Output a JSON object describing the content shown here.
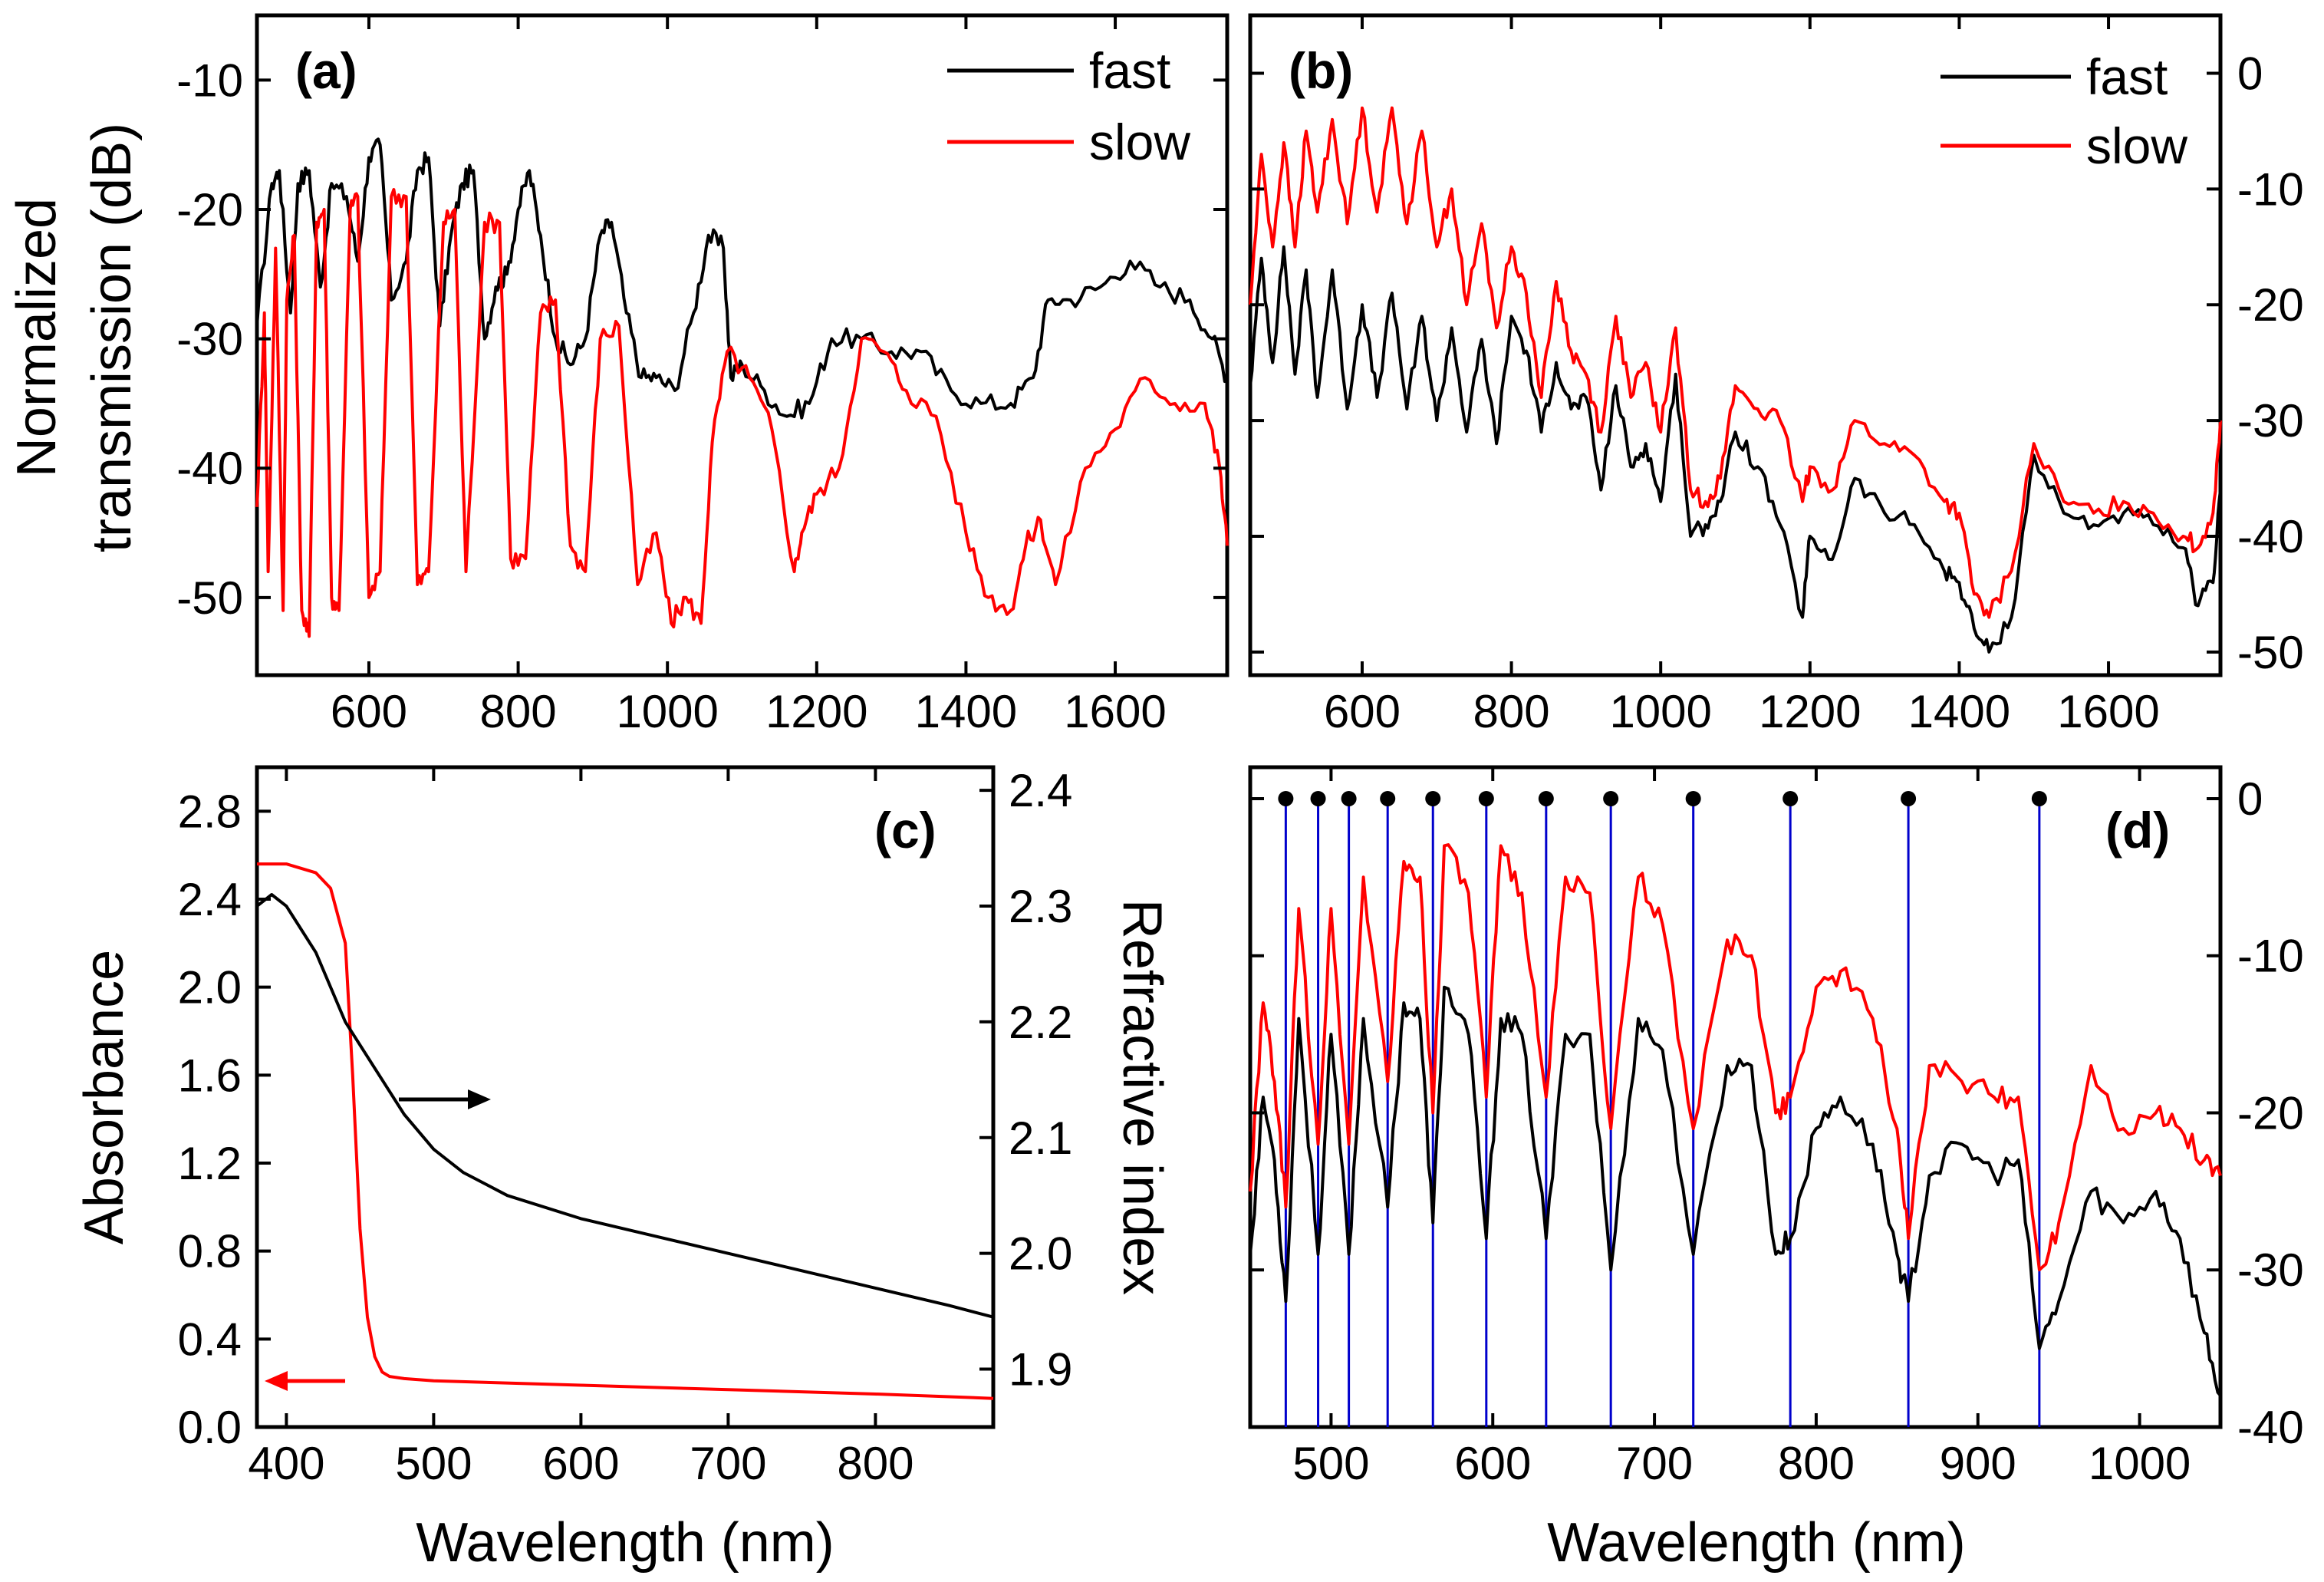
{
  "figure": {
    "y_title_left_top": [
      "Normalized",
      "transmission (dB)"
    ],
    "colors": {
      "fast": "#000000",
      "slow": "#ff0000",
      "mode_line": "#0000cc",
      "frame": "#000000"
    }
  },
  "chart_data": [
    {
      "id": "a",
      "type": "line",
      "panel_label": "(a)",
      "x_range": [
        450,
        1750
      ],
      "y_range": [
        -56,
        -5
      ],
      "y_axis_side": "left",
      "x_ticks": [
        "600",
        "800",
        "1000",
        "1200",
        "1400",
        "1600"
      ],
      "y_ticks": [
        "-10",
        "-20",
        "-30",
        "-40",
        "-50"
      ],
      "y_tick_values": [
        -10,
        -20,
        -30,
        -40,
        -50
      ],
      "legend": [
        "fast",
        "slow"
      ],
      "series": [
        {
          "name": "fast",
          "x": [
            450,
            470,
            480,
            495,
            505,
            520,
            535,
            550,
            570,
            585,
            600,
            615,
            630,
            650,
            665,
            680,
            695,
            710,
            725,
            740,
            755,
            770,
            785,
            800,
            815,
            830,
            850,
            870,
            890,
            910,
            925,
            945,
            965,
            985,
            1010,
            1035,
            1055,
            1075,
            1085,
            1100,
            1130,
            1160,
            1190,
            1220,
            1260,
            1300,
            1340,
            1380,
            1420,
            1460,
            1490,
            1510,
            1540,
            1580,
            1620,
            1660,
            1700,
            1730,
            1750
          ],
          "y": [
            -29,
            -18,
            -17,
            -28,
            -18,
            -17,
            -26,
            -18,
            -19,
            -24,
            -16,
            -15,
            -27,
            -24,
            -17,
            -16,
            -29,
            -22,
            -18,
            -17,
            -30,
            -26,
            -25,
            -20,
            -17,
            -22,
            -30,
            -32,
            -30,
            -22,
            -21,
            -28,
            -33,
            -33,
            -34,
            -28,
            -22,
            -23,
            -33,
            -32,
            -34,
            -36,
            -35,
            -30,
            -30,
            -31,
            -31,
            -34,
            -35,
            -35,
            -33,
            -27,
            -27,
            -26,
            -24,
            -26,
            -27,
            -30,
            -33
          ]
        },
        {
          "name": "slow",
          "x": [
            450,
            460,
            465,
            475,
            485,
            490,
            500,
            510,
            520,
            530,
            540,
            550,
            560,
            575,
            585,
            600,
            615,
            630,
            650,
            665,
            680,
            700,
            715,
            730,
            755,
            775,
            790,
            810,
            830,
            850,
            870,
            890,
            910,
            935,
            960,
            985,
            1005,
            1025,
            1045,
            1060,
            1080,
            1110,
            1140,
            1170,
            1180,
            1200,
            1230,
            1260,
            1290,
            1320,
            1360,
            1400,
            1430,
            1460,
            1480,
            1500,
            1520,
            1560,
            1600,
            1640,
            1680,
            1720,
            1740,
            1750
          ],
          "y": [
            -43,
            -28,
            -48,
            -23,
            -51,
            -27,
            -22,
            -51,
            -53,
            -21,
            -20,
            -50,
            -51,
            -20,
            -19,
            -50,
            -48,
            -19,
            -19,
            -49,
            -48,
            -21,
            -20,
            -48,
            -21,
            -21,
            -47,
            -47,
            -28,
            -27,
            -46,
            -48,
            -30,
            -29,
            -49,
            -45,
            -52,
            -50,
            -52,
            -38,
            -31,
            -33,
            -37,
            -48,
            -45,
            -42,
            -40,
            -30,
            -31,
            -34,
            -36,
            -45,
            -50,
            -51,
            -46,
            -44,
            -49,
            -40,
            -37,
            -33,
            -35,
            -35,
            -40,
            -46
          ]
        }
      ]
    },
    {
      "id": "b",
      "type": "line",
      "panel_label": "(b)",
      "x_range": [
        450,
        1750
      ],
      "y_range": [
        -52,
        5
      ],
      "y_axis_side": "right",
      "x_ticks": [
        "600",
        "800",
        "1000",
        "1200",
        "1400",
        "1600"
      ],
      "y_ticks": [
        "0",
        "-10",
        "-20",
        "-30",
        "-40",
        "-50"
      ],
      "y_tick_values": [
        0,
        -10,
        -20,
        -30,
        -40,
        -50
      ],
      "legend": [
        "fast",
        "slow"
      ],
      "series": [
        {
          "name": "fast",
          "x": [
            450,
            465,
            480,
            495,
            510,
            525,
            540,
            560,
            580,
            600,
            620,
            640,
            660,
            680,
            700,
            720,
            740,
            760,
            780,
            800,
            820,
            840,
            860,
            880,
            900,
            920,
            940,
            960,
            980,
            1000,
            1020,
            1040,
            1060,
            1080,
            1100,
            1130,
            1160,
            1190,
            1200,
            1230,
            1260,
            1300,
            1340,
            1380,
            1400,
            1420,
            1440,
            1470,
            1500,
            1540,
            1580,
            1620,
            1660,
            1700,
            1720,
            1740,
            1750
          ],
          "y": [
            -27,
            -16,
            -25,
            -15,
            -26,
            -17,
            -28,
            -17,
            -29,
            -20,
            -28,
            -19,
            -29,
            -21,
            -30,
            -22,
            -31,
            -23,
            -32,
            -21,
            -24,
            -31,
            -25,
            -29,
            -28,
            -36,
            -27,
            -34,
            -32,
            -37,
            -26,
            -40,
            -39,
            -37,
            -31,
            -34,
            -39,
            -47,
            -40,
            -42,
            -35,
            -38,
            -39,
            -43,
            -44,
            -48,
            -50,
            -47,
            -33,
            -38,
            -39,
            -38,
            -39,
            -41,
            -46,
            -44,
            -36
          ]
        },
        {
          "name": "slow",
          "x": [
            450,
            465,
            480,
            495,
            510,
            525,
            540,
            560,
            580,
            600,
            620,
            640,
            660,
            680,
            700,
            720,
            740,
            760,
            780,
            800,
            820,
            840,
            860,
            880,
            900,
            920,
            940,
            960,
            980,
            1000,
            1020,
            1040,
            1060,
            1080,
            1100,
            1130,
            1160,
            1190,
            1200,
            1230,
            1260,
            1300,
            1340,
            1380,
            1400,
            1420,
            1440,
            1470,
            1500,
            1540,
            1580,
            1620,
            1660,
            1700,
            1720,
            1740,
            1750
          ],
          "y": [
            -20,
            -7,
            -15,
            -6,
            -15,
            -5,
            -12,
            -4,
            -13,
            -3,
            -12,
            -3,
            -13,
            -5,
            -15,
            -10,
            -20,
            -13,
            -22,
            -15,
            -19,
            -28,
            -18,
            -24,
            -26,
            -31,
            -21,
            -28,
            -25,
            -31,
            -22,
            -36,
            -37,
            -35,
            -27,
            -29,
            -30,
            -37,
            -34,
            -36,
            -30,
            -32,
            -33,
            -37,
            -38,
            -45,
            -47,
            -43,
            -32,
            -37,
            -38,
            -37,
            -38,
            -40,
            -41,
            -38,
            -30
          ]
        }
      ]
    },
    {
      "id": "c",
      "type": "line",
      "panel_label": "(c)",
      "x_range": [
        380,
        880
      ],
      "xlabel": "Wavelength (nm)",
      "x_ticks": [
        "400",
        "500",
        "600",
        "700",
        "800"
      ],
      "x_tick_values": [
        400,
        500,
        600,
        700,
        800
      ],
      "left_axis": {
        "title": "Absorbance",
        "range": [
          0,
          3.0
        ],
        "ticks": [
          "0.0",
          "0.4",
          "0.8",
          "1.2",
          "1.6",
          "2.0",
          "2.4",
          "2.8"
        ],
        "tick_values": [
          0.0,
          0.4,
          0.8,
          1.2,
          1.6,
          2.0,
          2.4,
          2.8
        ]
      },
      "right_axis": {
        "title": "Refractive index",
        "range": [
          1.85,
          2.42
        ],
        "ticks": [
          "1.9",
          "2.0",
          "2.1",
          "2.2",
          "2.3",
          "2.4"
        ],
        "tick_values": [
          1.9,
          2.0,
          2.1,
          2.2,
          2.3,
          2.4
        ]
      },
      "series": [
        {
          "name": "Absorbance",
          "axis": "left",
          "x": [
            380,
            400,
            420,
            430,
            440,
            445,
            450,
            455,
            460,
            465,
            470,
            480,
            500,
            600,
            700,
            800,
            880
          ],
          "y": [
            2.56,
            2.56,
            2.52,
            2.45,
            2.2,
            1.6,
            0.9,
            0.5,
            0.32,
            0.25,
            0.23,
            0.22,
            0.21,
            0.19,
            0.17,
            0.15,
            0.13
          ]
        },
        {
          "name": "Refractive index",
          "axis": "right",
          "x": [
            380,
            390,
            400,
            420,
            440,
            460,
            480,
            500,
            520,
            550,
            600,
            650,
            700,
            750,
            800,
            850,
            880
          ],
          "y": [
            2.3,
            2.31,
            2.3,
            2.26,
            2.2,
            2.16,
            2.12,
            2.09,
            2.07,
            2.05,
            2.03,
            2.015,
            2.0,
            1.985,
            1.97,
            1.955,
            1.945
          ]
        }
      ],
      "arrows": [
        {
          "series": "Refractive index",
          "direction": "right"
        },
        {
          "series": "Absorbance",
          "direction": "left"
        }
      ]
    },
    {
      "id": "d",
      "type": "line",
      "panel_label": "(d)",
      "x_range": [
        450,
        1050
      ],
      "y_range": [
        -40,
        2
      ],
      "y_axis_side": "right",
      "xlabel": "Wavelength (nm)",
      "x_ticks": [
        "500",
        "600",
        "700",
        "800",
        "900",
        "1000"
      ],
      "x_tick_values": [
        500,
        600,
        700,
        800,
        900,
        1000
      ],
      "y_ticks": [
        "0",
        "-10",
        "-20",
        "-30",
        "-40"
      ],
      "y_tick_values": [
        0,
        -10,
        -20,
        -30,
        -40
      ],
      "mode_markers_nm": [
        472,
        492,
        511,
        535,
        563,
        596,
        633,
        673,
        724,
        784,
        857,
        938
      ],
      "series": [
        {
          "name": "fast",
          "x": [
            450,
            458,
            465,
            472,
            480,
            492,
            500,
            511,
            520,
            535,
            545,
            555,
            563,
            570,
            585,
            596,
            605,
            618,
            633,
            645,
            660,
            673,
            690,
            705,
            724,
            745,
            760,
            775,
            784,
            800,
            815,
            835,
            850,
            857,
            870,
            890,
            910,
            925,
            938,
            950,
            970,
            990,
            1010,
            1025,
            1040,
            1050
          ],
          "y": [
            -29,
            -19,
            -23,
            -32,
            -14,
            -29,
            -15,
            -29,
            -14,
            -26,
            -13,
            -14,
            -27,
            -12,
            -15,
            -28,
            -14,
            -15,
            -28,
            -15,
            -15,
            -30,
            -14,
            -16,
            -29,
            -17,
            -17,
            -29,
            -28,
            -21,
            -19,
            -22,
            -29,
            -32,
            -24,
            -22,
            -24,
            -23,
            -35,
            -32,
            -25,
            -27,
            -25,
            -28,
            -34,
            -38
          ]
        },
        {
          "name": "slow",
          "x": [
            450,
            458,
            465,
            472,
            480,
            492,
            500,
            511,
            520,
            535,
            545,
            555,
            563,
            570,
            585,
            596,
            605,
            618,
            633,
            645,
            660,
            673,
            690,
            705,
            724,
            745,
            760,
            775,
            784,
            800,
            815,
            835,
            850,
            857,
            870,
            890,
            910,
            925,
            938,
            950,
            970,
            990,
            1010,
            1025,
            1040,
            1050
          ],
          "y": [
            -25,
            -13,
            -18,
            -26,
            -7,
            -22,
            -7,
            -22,
            -5,
            -18,
            -4,
            -5,
            -20,
            -3,
            -6,
            -19,
            -3,
            -6,
            -19,
            -5,
            -6,
            -21,
            -5,
            -8,
            -21,
            -9,
            -10,
            -20,
            -19,
            -12,
            -11,
            -14,
            -21,
            -28,
            -17,
            -18,
            -19,
            -19,
            -30,
            -27,
            -17,
            -21,
            -20,
            -21,
            -23,
            -24
          ]
        }
      ]
    }
  ]
}
